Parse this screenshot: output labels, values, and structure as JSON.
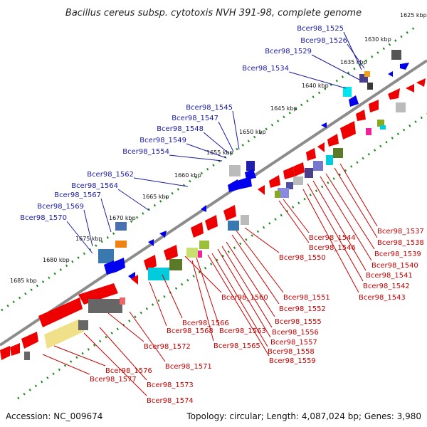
{
  "title": "Bacillus cereus subsp. cytotoxis NVH 391-98, complete genome",
  "footer": {
    "accession": "Accession: NC_009674",
    "summary": "Topology: circular; Length: 4,087,024 bp; Genes: 3,980"
  },
  "colors": {
    "forward_strand": "#ee0000",
    "reverse_strand": "#0000ee",
    "label_reverse": "#1a1aa6",
    "label_forward": "#c80000",
    "tick_dots": "#1b8a1b",
    "backbone": "#8c8c8c"
  },
  "kbp_ticks": [
    "1625 kbp",
    "1630 kbp",
    "1635 kbp",
    "1640 kbp",
    "1645 kbp",
    "1650 kbp",
    "1655 kbp",
    "1660 kbp",
    "1665 kbp",
    "1670 kbp",
    "1675 kbp",
    "1680 kbp",
    "1685 kbp"
  ],
  "reverse_strand_labels": [
    "Bcer98_1525",
    "Bcer98_1526",
    "Bcer98_1529",
    "Bcer98_1534",
    "Bcer98_1545",
    "Bcer98_1547",
    "Bcer98_1548",
    "Bcer98_1549",
    "Bcer98_1554",
    "Bcer98_1562",
    "Bcer98_1564",
    "Bcer98_1567",
    "Bcer98_1569",
    "Bcer98_1570"
  ],
  "forward_strand_labels_right": [
    "Bcer98_1537",
    "Bcer98_1538",
    "Bcer98_1539",
    "Bcer98_1540",
    "Bcer98_1541",
    "Bcer98_1542",
    "Bcer98_1543",
    "Bcer98_1544",
    "Bcer98_1546",
    "Bcer98_1550",
    "Bcer98_1551",
    "Bcer98_1552",
    "Bcer98_1555",
    "Bcer98_1556",
    "Bcer98_1557",
    "Bcer98_1558",
    "Bcer98_1559",
    "Bcer98_1560",
    "Bcer98_1563",
    "Bcer98_1565",
    "Bcer98_1566",
    "Bcer98_1568"
  ],
  "forward_strand_labels_bottom": [
    "Bcer98_1571",
    "Bcer98_1572",
    "Bcer98_1573",
    "Bcer98_1574",
    "Bcer98_1576",
    "Bcer98_1577"
  ]
}
